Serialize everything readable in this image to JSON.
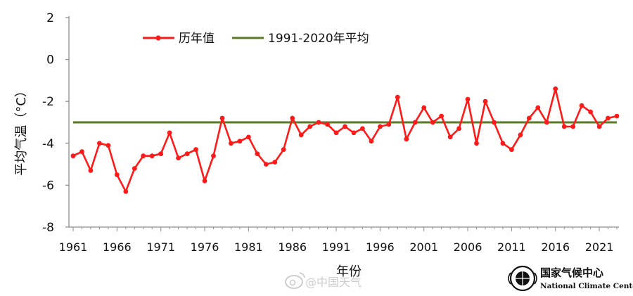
{
  "chart_data": {
    "type": "line",
    "xlabel": "年份",
    "ylabel": "平均气温（°C）",
    "ylim": [
      -8,
      2
    ],
    "yticks": [
      2,
      0,
      -2,
      -4,
      -6,
      -8
    ],
    "xlim": [
      1961,
      2023
    ],
    "xticks": [
      1961,
      1966,
      1971,
      1976,
      1981,
      1986,
      1991,
      1996,
      2001,
      2006,
      2011,
      2016,
      2021
    ],
    "legend_position": "top-left",
    "grid": false,
    "series": [
      {
        "name": "历年值",
        "color": "#ff1a1a",
        "marker": "circle",
        "x": [
          1961,
          1962,
          1963,
          1964,
          1965,
          1966,
          1967,
          1968,
          1969,
          1970,
          1971,
          1972,
          1973,
          1974,
          1975,
          1976,
          1977,
          1978,
          1979,
          1980,
          1981,
          1982,
          1983,
          1984,
          1985,
          1986,
          1987,
          1988,
          1989,
          1990,
          1991,
          1992,
          1993,
          1994,
          1995,
          1996,
          1997,
          1998,
          1999,
          2000,
          2001,
          2002,
          2003,
          2004,
          2005,
          2006,
          2007,
          2008,
          2009,
          2010,
          2011,
          2012,
          2013,
          2014,
          2015,
          2016,
          2017,
          2018,
          2019,
          2020,
          2021,
          2022,
          2023
        ],
        "values": [
          -4.6,
          -4.4,
          -5.3,
          -4.0,
          -4.1,
          -5.5,
          -6.3,
          -5.2,
          -4.6,
          -4.6,
          -4.5,
          -3.5,
          -4.7,
          -4.5,
          -4.3,
          -5.8,
          -4.6,
          -2.8,
          -4.0,
          -3.9,
          -3.7,
          -4.5,
          -5.0,
          -4.9,
          -4.3,
          -2.8,
          -3.6,
          -3.2,
          -3.0,
          -3.1,
          -3.5,
          -3.2,
          -3.5,
          -3.3,
          -3.9,
          -3.2,
          -3.1,
          -1.8,
          -3.8,
          -3.0,
          -2.3,
          -3.0,
          -2.7,
          -3.7,
          -3.3,
          -1.9,
          -4.0,
          -2.0,
          -3.0,
          -4.0,
          -4.3,
          -3.6,
          -2.8,
          -2.3,
          -3.0,
          -1.4,
          -3.2,
          -3.2,
          -2.2,
          -2.5,
          -3.2,
          -2.8,
          -2.7
        ]
      },
      {
        "name": "1991-2020年平均",
        "color": "#5a7a28",
        "marker": "none",
        "x": [
          1961,
          2023
        ],
        "values": [
          -3.0,
          -3.0
        ]
      }
    ]
  },
  "logo": {
    "name_cn": "国家气候中心",
    "name_en": "National Climate Center",
    "icon": "wmo-globe-icon"
  },
  "watermark": {
    "text": "@中国天气",
    "icon": "weibo-icon"
  }
}
